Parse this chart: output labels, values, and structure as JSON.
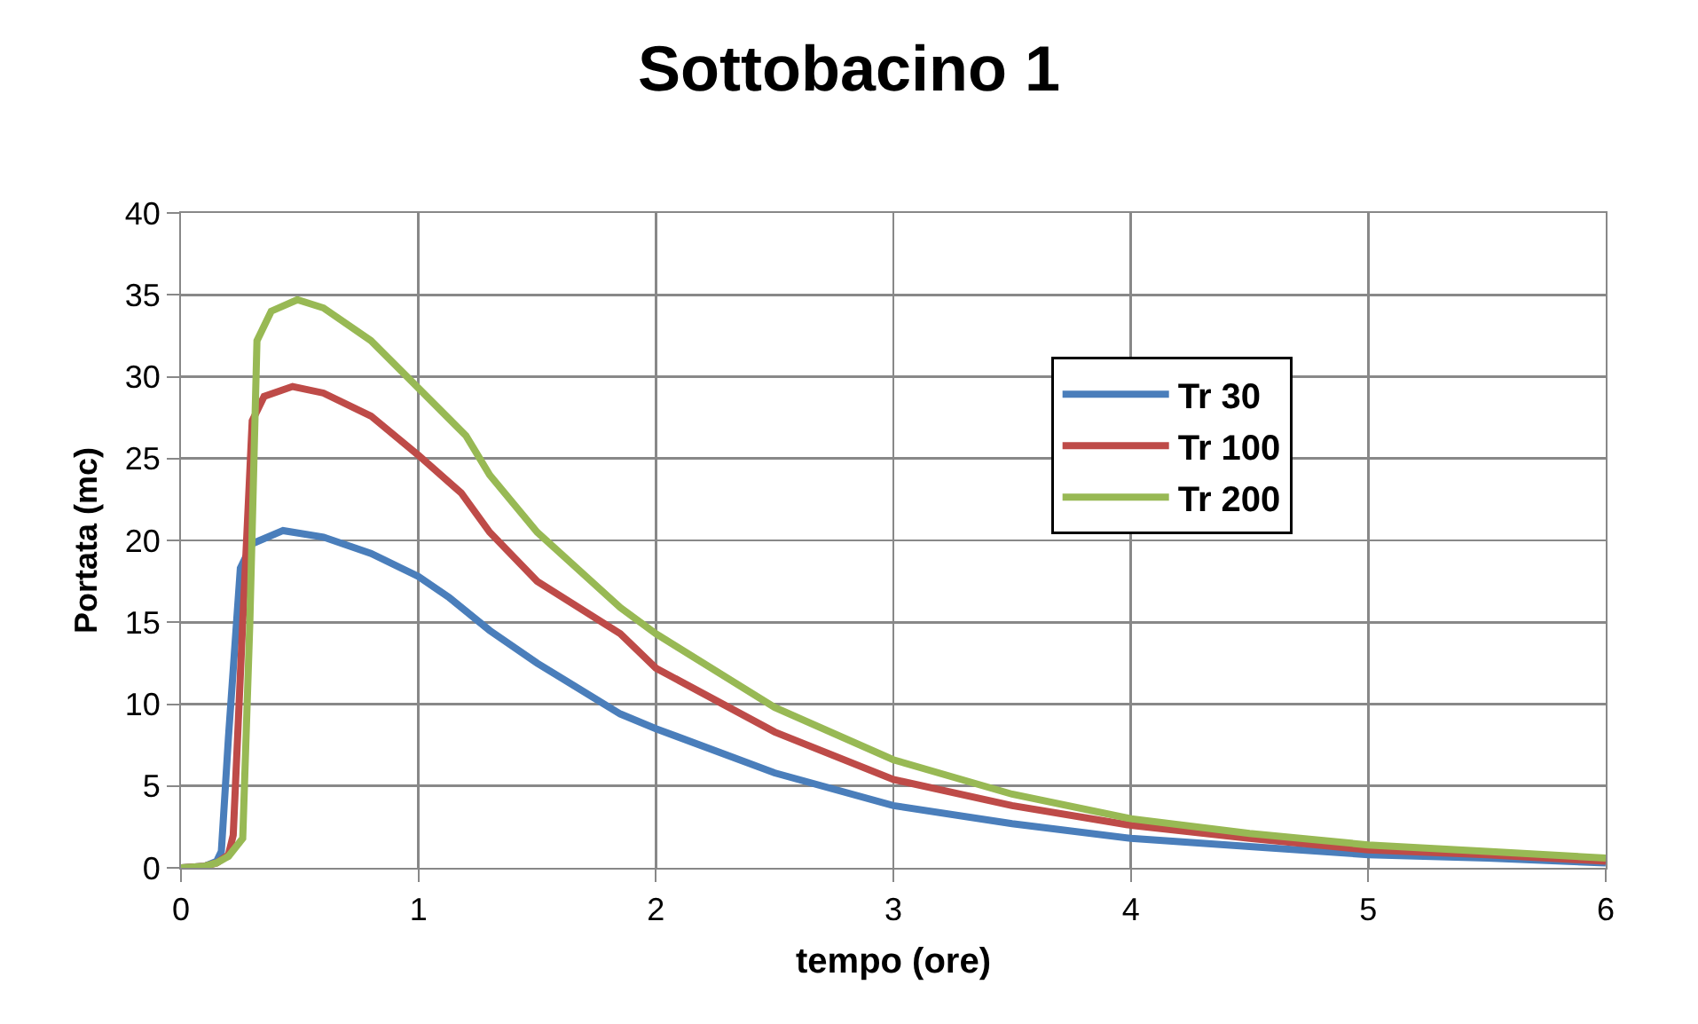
{
  "chart_data": {
    "type": "line",
    "title": "Sottobacino 1",
    "xlabel": "tempo (ore)",
    "ylabel": "Portata (mc)",
    "xlim": [
      0,
      6
    ],
    "xticks": [
      0,
      1,
      2,
      3,
      4,
      5,
      6
    ],
    "ylim": [
      0,
      40
    ],
    "yticks": [
      0,
      5,
      10,
      15,
      20,
      25,
      30,
      35,
      40
    ],
    "grid": true,
    "legend": "top right",
    "marker": "none",
    "line_style": "solid",
    "series": [
      {
        "name": "Tr 30",
        "color": "#4a7ebb",
        "x": [
          0,
          0.1,
          0.15,
          0.17,
          0.2,
          0.25,
          0.3,
          0.43,
          0.6,
          0.8,
          1.0,
          1.13,
          1.3,
          1.5,
          1.85,
          2,
          2.5,
          3,
          3.5,
          4,
          4.5,
          5,
          5.5,
          6
        ],
        "values": [
          0,
          0.1,
          0.4,
          1,
          8,
          18.3,
          19.8,
          20.6,
          20.2,
          19.2,
          17.8,
          16.5,
          14.5,
          12.5,
          9.4,
          8.5,
          5.8,
          3.8,
          2.7,
          1.8,
          1.3,
          0.8,
          0.6,
          0.3
        ]
      },
      {
        "name": "Tr 100",
        "color": "#be4b48",
        "x": [
          0,
          0.1,
          0.15,
          0.2,
          0.22,
          0.26,
          0.3,
          0.35,
          0.47,
          0.6,
          0.8,
          1.0,
          1.18,
          1.3,
          1.5,
          1.85,
          2,
          2.5,
          3,
          3.5,
          4,
          4.5,
          5,
          5.5,
          6
        ],
        "values": [
          0,
          0.1,
          0.3,
          0.8,
          2,
          15,
          27.3,
          28.8,
          29.4,
          29,
          27.6,
          25.2,
          22.9,
          20.5,
          17.5,
          14.3,
          12.2,
          8.3,
          5.4,
          3.8,
          2.6,
          1.8,
          1.1,
          0.8,
          0.4
        ]
      },
      {
        "name": "Tr 200",
        "color": "#98b954",
        "x": [
          0,
          0.1,
          0.15,
          0.2,
          0.26,
          0.29,
          0.32,
          0.38,
          0.49,
          0.6,
          0.8,
          1.0,
          1.2,
          1.3,
          1.5,
          1.85,
          2,
          2.5,
          3,
          3.5,
          4,
          4.5,
          5,
          5.5,
          6
        ],
        "values": [
          0,
          0.1,
          0.3,
          0.7,
          1.8,
          15,
          32.2,
          34,
          34.7,
          34.2,
          32.2,
          29.3,
          26.4,
          24,
          20.5,
          15.9,
          14.3,
          9.8,
          6.6,
          4.5,
          3,
          2.1,
          1.4,
          1,
          0.6
        ]
      }
    ]
  }
}
